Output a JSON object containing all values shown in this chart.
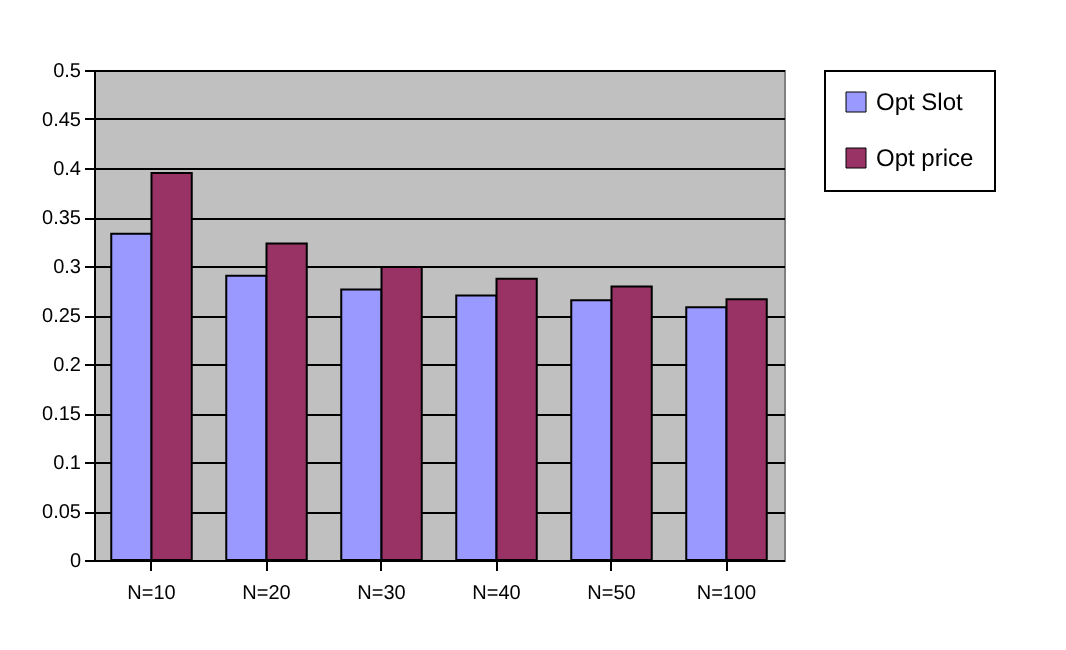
{
  "chart_data": {
    "type": "bar",
    "categories": [
      "N=10",
      "N=20",
      "N=30",
      "N=40",
      "N=50",
      "N=100"
    ],
    "series": [
      {
        "name": "Opt Slot",
        "color": "#9999ff",
        "values": [
          0.333,
          0.29,
          0.276,
          0.27,
          0.265,
          0.258
        ]
      },
      {
        "name": "Opt price",
        "color": "#993366",
        "values": [
          0.395,
          0.323,
          0.299,
          0.287,
          0.279,
          0.266
        ]
      }
    ],
    "ylim": [
      0,
      0.5
    ],
    "yticks": [
      0,
      0.05,
      0.1,
      0.15,
      0.2,
      0.25,
      0.3,
      0.35,
      0.4,
      0.45,
      0.5
    ],
    "grid": "y",
    "legend": "right"
  }
}
